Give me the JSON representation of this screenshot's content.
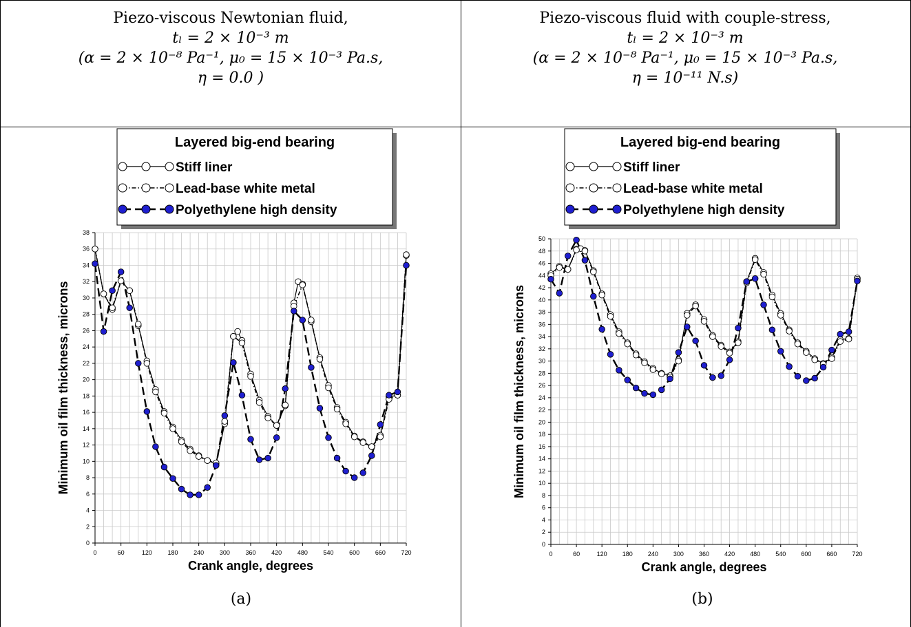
{
  "panels": [
    {
      "header": {
        "line1": "Piezo-viscous Newtonian fluid,",
        "line2": "tₗ = 2 × 10⁻³ m",
        "line3": "(α = 2 × 10⁻⁸ Pa⁻¹, μ₀ = 15 × 10⁻³ Pa.s,",
        "line4": "η = 0.0 )"
      },
      "caption": "(a)"
    },
    {
      "header": {
        "line1": "Piezo-viscous fluid with couple-stress,",
        "line2": "tₗ = 2 × 10⁻³ m",
        "line3": "(α = 2 × 10⁻⁸ Pa⁻¹, μ₀ = 15 × 10⁻³ Pa.s,",
        "line4": "η = 10⁻¹¹ N.s)"
      },
      "caption": "(b)"
    }
  ],
  "chart_data": [
    {
      "type": "line",
      "legend_title": "Layered big-end bearing",
      "xlabel": "Crank angle, degrees",
      "ylabel": "Minimum oil film thickness, microns",
      "xlim": [
        0,
        720
      ],
      "ylim": [
        0,
        38
      ],
      "xticks": [
        0,
        60,
        120,
        180,
        240,
        300,
        360,
        420,
        480,
        540,
        600,
        660,
        720
      ],
      "yticks": [
        0,
        2,
        4,
        6,
        8,
        10,
        12,
        14,
        16,
        18,
        20,
        22,
        24,
        26,
        28,
        30,
        32,
        34,
        36,
        38
      ],
      "grid": true,
      "legend_position": "top",
      "series": [
        {
          "name": "Stiff liner",
          "color": "#ffffff",
          "x": [
            0,
            20,
            40,
            60,
            80,
            100,
            120,
            140,
            160,
            180,
            200,
            220,
            240,
            260,
            280,
            300,
            320,
            330,
            340,
            360,
            380,
            400,
            420,
            440,
            460,
            470,
            480,
            500,
            520,
            540,
            560,
            580,
            600,
            620,
            640,
            660,
            680,
            700,
            720
          ],
          "values": [
            36.0,
            30.5,
            28.6,
            32.1,
            30.9,
            26.6,
            22.3,
            18.8,
            16.1,
            14.2,
            12.6,
            11.5,
            10.7,
            10.1,
            9.7,
            14.6,
            25.3,
            25.9,
            24.8,
            20.7,
            17.5,
            15.5,
            14.4,
            16.8,
            29.4,
            32.0,
            31.7,
            27.1,
            22.7,
            19.3,
            16.6,
            14.8,
            13.1,
            12.4,
            11.8,
            13.2,
            17.9,
            18.1,
            35.2
          ]
        },
        {
          "name": "Lead-base white metal",
          "color": "#ffffff",
          "x": [
            0,
            20,
            40,
            60,
            80,
            100,
            120,
            140,
            160,
            180,
            200,
            220,
            240,
            260,
            280,
            300,
            320,
            340,
            360,
            380,
            400,
            420,
            440,
            460,
            480,
            500,
            520,
            540,
            560,
            580,
            600,
            620,
            640,
            660,
            680,
            700,
            720
          ],
          "values": [
            36.0,
            30.5,
            28.8,
            32.1,
            30.9,
            26.8,
            22.0,
            18.5,
            15.9,
            14.0,
            12.4,
            11.3,
            10.6,
            10.1,
            9.8,
            14.9,
            25.3,
            24.5,
            20.4,
            17.2,
            15.3,
            14.4,
            16.9,
            29.0,
            31.6,
            27.3,
            22.5,
            19.0,
            16.4,
            14.6,
            13.0,
            12.3,
            11.8,
            13.0,
            17.6,
            18.1,
            35.3
          ]
        },
        {
          "name": "Polyethylene high density",
          "color": "#1f1fd0",
          "x": [
            0,
            20,
            40,
            60,
            80,
            100,
            120,
            140,
            160,
            180,
            200,
            220,
            240,
            260,
            280,
            300,
            320,
            340,
            360,
            380,
            400,
            420,
            440,
            460,
            480,
            500,
            520,
            540,
            560,
            580,
            600,
            620,
            640,
            660,
            680,
            700,
            720
          ],
          "values": [
            34.2,
            25.9,
            30.9,
            33.2,
            28.8,
            22.0,
            16.1,
            11.8,
            9.3,
            7.9,
            6.6,
            5.9,
            5.9,
            6.8,
            9.5,
            15.6,
            22.1,
            18.1,
            12.7,
            10.2,
            10.4,
            12.9,
            18.9,
            28.4,
            27.3,
            21.5,
            16.5,
            12.9,
            10.4,
            8.8,
            8.0,
            8.6,
            10.7,
            14.5,
            18.1,
            18.5,
            34.0
          ]
        }
      ]
    },
    {
      "type": "line",
      "legend_title": "Layered big-end bearing",
      "xlabel": "Crank angle, degrees",
      "ylabel": "Minimum oil film thickness, microns",
      "xlim": [
        0,
        720
      ],
      "ylim": [
        0,
        50
      ],
      "xticks": [
        0,
        60,
        120,
        180,
        240,
        300,
        360,
        420,
        480,
        540,
        600,
        660,
        720
      ],
      "yticks": [
        0,
        2,
        4,
        6,
        8,
        10,
        12,
        14,
        16,
        18,
        20,
        22,
        24,
        26,
        28,
        30,
        32,
        34,
        36,
        38,
        40,
        42,
        44,
        46,
        48,
        50
      ],
      "grid": true,
      "legend_position": "top",
      "series": [
        {
          "name": "Stiff liner",
          "color": "#ffffff",
          "x": [
            0,
            20,
            40,
            60,
            70,
            80,
            100,
            120,
            140,
            160,
            180,
            200,
            220,
            240,
            260,
            280,
            300,
            320,
            340,
            360,
            380,
            400,
            420,
            440,
            460,
            480,
            500,
            520,
            540,
            560,
            580,
            600,
            620,
            640,
            660,
            680,
            700,
            720
          ],
          "values": [
            44.3,
            45.5,
            45.0,
            48.3,
            48.4,
            48.1,
            44.8,
            41.0,
            37.6,
            34.8,
            33.0,
            31.2,
            29.9,
            28.8,
            28.0,
            27.6,
            30.2,
            37.8,
            39.2,
            36.8,
            34.2,
            32.6,
            31.5,
            33.2,
            43.0,
            46.8,
            44.5,
            40.8,
            37.8,
            35.1,
            33.0,
            31.6,
            30.4,
            29.6,
            30.6,
            33.5,
            33.7,
            43.6
          ]
        },
        {
          "name": "Lead-base white metal",
          "color": "#ffffff",
          "x": [
            0,
            20,
            40,
            60,
            80,
            100,
            120,
            140,
            160,
            180,
            200,
            220,
            240,
            260,
            280,
            300,
            320,
            340,
            360,
            380,
            400,
            420,
            440,
            460,
            480,
            500,
            520,
            540,
            560,
            580,
            600,
            620,
            640,
            660,
            680,
            700,
            720
          ],
          "values": [
            44.0,
            45.3,
            45.0,
            48.2,
            48.0,
            44.6,
            40.8,
            37.3,
            34.5,
            32.8,
            31.0,
            29.7,
            28.6,
            27.9,
            27.4,
            30.0,
            37.5,
            39.0,
            36.5,
            34.0,
            32.4,
            31.3,
            33.0,
            42.8,
            46.6,
            44.2,
            40.5,
            37.5,
            34.9,
            32.8,
            31.4,
            30.2,
            29.5,
            30.4,
            33.2,
            33.6,
            43.4
          ]
        },
        {
          "name": "Polyethylene high density",
          "color": "#1f1fd0",
          "x": [
            0,
            20,
            40,
            60,
            80,
            100,
            120,
            140,
            160,
            180,
            200,
            220,
            240,
            260,
            280,
            300,
            320,
            340,
            360,
            380,
            400,
            420,
            440,
            460,
            480,
            500,
            520,
            540,
            560,
            580,
            600,
            620,
            640,
            660,
            680,
            700,
            720
          ],
          "values": [
            43.4,
            41.1,
            47.2,
            49.8,
            46.5,
            40.6,
            35.2,
            31.1,
            28.5,
            26.9,
            25.6,
            24.7,
            24.5,
            25.3,
            27.1,
            31.4,
            35.6,
            33.3,
            29.3,
            27.3,
            27.6,
            30.2,
            35.4,
            43.0,
            43.5,
            39.2,
            35.1,
            31.6,
            29.1,
            27.5,
            26.8,
            27.2,
            29.0,
            31.8,
            34.4,
            34.8,
            43.1
          ]
        }
      ]
    }
  ]
}
